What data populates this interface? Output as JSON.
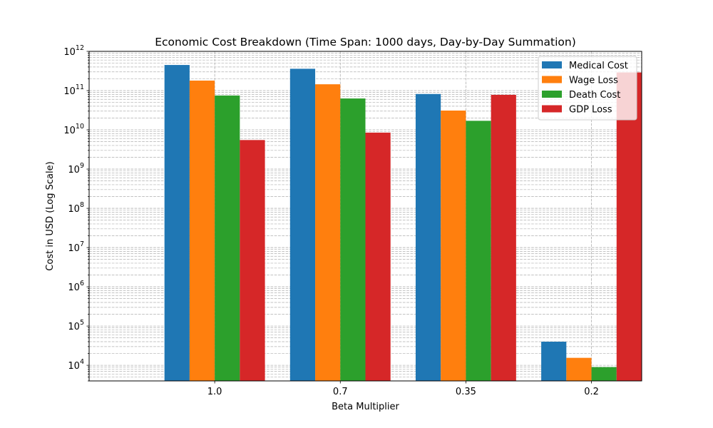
{
  "chart_data": {
    "type": "bar",
    "title": "Economic Cost Breakdown (Time Span: 1000 days, Day-by-Day Summation)",
    "xlabel": "Beta Multiplier",
    "ylabel": "Cost in USD (Log Scale)",
    "yscale": "log",
    "ylim": [
      4000,
      1000000000000
    ],
    "categories": [
      "1.0",
      "0.7",
      "0.35",
      "0.2"
    ],
    "series": [
      {
        "name": "Medical Cost",
        "color": "#1f77b4",
        "values": [
          450000000000,
          360000000000,
          82000000000,
          40000
        ]
      },
      {
        "name": "Wage Loss",
        "color": "#ff7f0e",
        "values": [
          180000000000,
          145000000000,
          31000000000,
          15500
        ]
      },
      {
        "name": "Death Cost",
        "color": "#2ca02c",
        "values": [
          75000000000,
          63000000000,
          17000000000,
          9000
        ]
      },
      {
        "name": "GDP Loss",
        "color": "#d62728",
        "values": [
          5500000000,
          8500000000,
          78000000000,
          290000000000
        ]
      }
    ],
    "yticks": [
      {
        "value": 10000,
        "exp": "4"
      },
      {
        "value": 100000,
        "exp": "5"
      },
      {
        "value": 1000000,
        "exp": "6"
      },
      {
        "value": 10000000,
        "exp": "7"
      },
      {
        "value": 100000000,
        "exp": "8"
      },
      {
        "value": 1000000000,
        "exp": "9"
      },
      {
        "value": 10000000000,
        "exp": "10"
      },
      {
        "value": 100000000000,
        "exp": "11"
      },
      {
        "value": 1000000000000,
        "exp": "12"
      }
    ],
    "ytick_base": "10",
    "grid": true,
    "legend_position": "top-right"
  }
}
